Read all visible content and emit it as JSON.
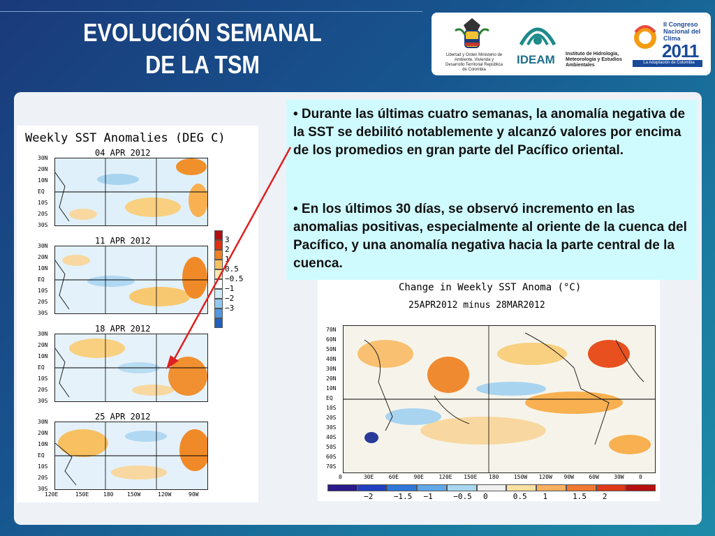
{
  "header": {
    "title_line1": "EVOLUCIÓN SEMANAL",
    "title_line2": "DE LA TSM"
  },
  "logos": {
    "ministry_text": "Libertad y Orden Ministerio de Ambiente, Vivienda y Desarrollo Territorial República de Colombia",
    "ideam_acronym": "IDEAM",
    "ideam_name": "Instituto de Hidrología, Meteorología y Estudios Ambientales",
    "congress_title": "II Congreso Nacional del Clima",
    "congress_year": "2011",
    "congress_tagline": "La Adaptación de Colombia"
  },
  "left_figure": {
    "title": "Weekly SST Anomalies (DEG C)",
    "panels": [
      "04 APR 2012",
      "11 APR 2012",
      "18 APR 2012",
      "25 APR 2012"
    ],
    "lat_ticks": [
      "30N",
      "20N",
      "10N",
      "EQ",
      "10S",
      "20S",
      "30S"
    ],
    "lon_ticks": [
      "120E",
      "150E",
      "180",
      "150W",
      "120W",
      "90W"
    ],
    "colorbar_labels": [
      "3",
      "2",
      "1",
      "0.5",
      "−0.5",
      "−1",
      "−2",
      "−3"
    ],
    "colorbar_colors": [
      "#b01010",
      "#e03010",
      "#f08020",
      "#f8c060",
      "#fbe8b0",
      "#ffffff",
      "#d0eaf8",
      "#90c8f0",
      "#5098e0",
      "#2060c0"
    ]
  },
  "right_figure": {
    "title": "Change in Weekly SST Anoma (°C)",
    "subtitle": "25APR2012 minus 28MAR2012",
    "lat_ticks": [
      "70N",
      "60N",
      "50N",
      "40N",
      "30N",
      "20N",
      "10N",
      "EQ",
      "10S",
      "20S",
      "30S",
      "40S",
      "50S",
      "60S",
      "70S"
    ],
    "lon_ticks": [
      "0",
      "30E",
      "60E",
      "90E",
      "120E",
      "150E",
      "180",
      "150W",
      "120W",
      "90W",
      "60W",
      "30W",
      "0"
    ],
    "colorbar_labels": [
      "−2",
      "−1.5",
      "−1",
      "−0.5",
      "0",
      "0.5",
      "1",
      "1.5",
      "2"
    ],
    "colorbar_colors": [
      "#2a1a8a",
      "#2040c0",
      "#3078d8",
      "#60a8e8",
      "#a8d8f0",
      "#f0f0f0",
      "#f8e0a0",
      "#f8b060",
      "#f07830",
      "#e03a18",
      "#b81010"
    ]
  },
  "bullets": [
    "• Durante las últimas cuatro semanas, la anomalía negativa de la SST se debilitó notablemente y alcanzó valores por encima de los promedios en gran parte del Pacífico oriental.",
    "• En los últimos 30 días, se observó incremento en las anomalias positivas, especialmente al oriente de la cuenca del Pacífico, y una anomalía negativa hacia la parte central de la cuenca."
  ]
}
